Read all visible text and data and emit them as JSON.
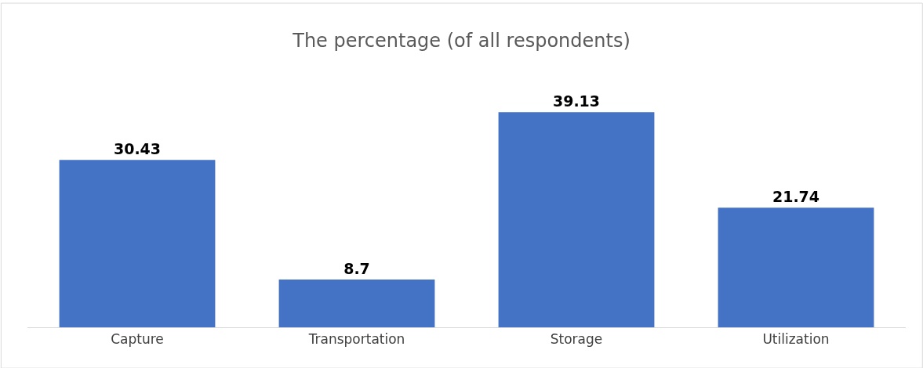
{
  "chart_data": {
    "type": "bar",
    "title": "The percentage (of all respondents)",
    "categories": [
      "Capture",
      "Transportation",
      "Storage",
      "Utilization"
    ],
    "values": [
      30.43,
      8.7,
      39.13,
      21.74
    ],
    "color": "#4472c4",
    "data_labels": true,
    "legend": false
  }
}
